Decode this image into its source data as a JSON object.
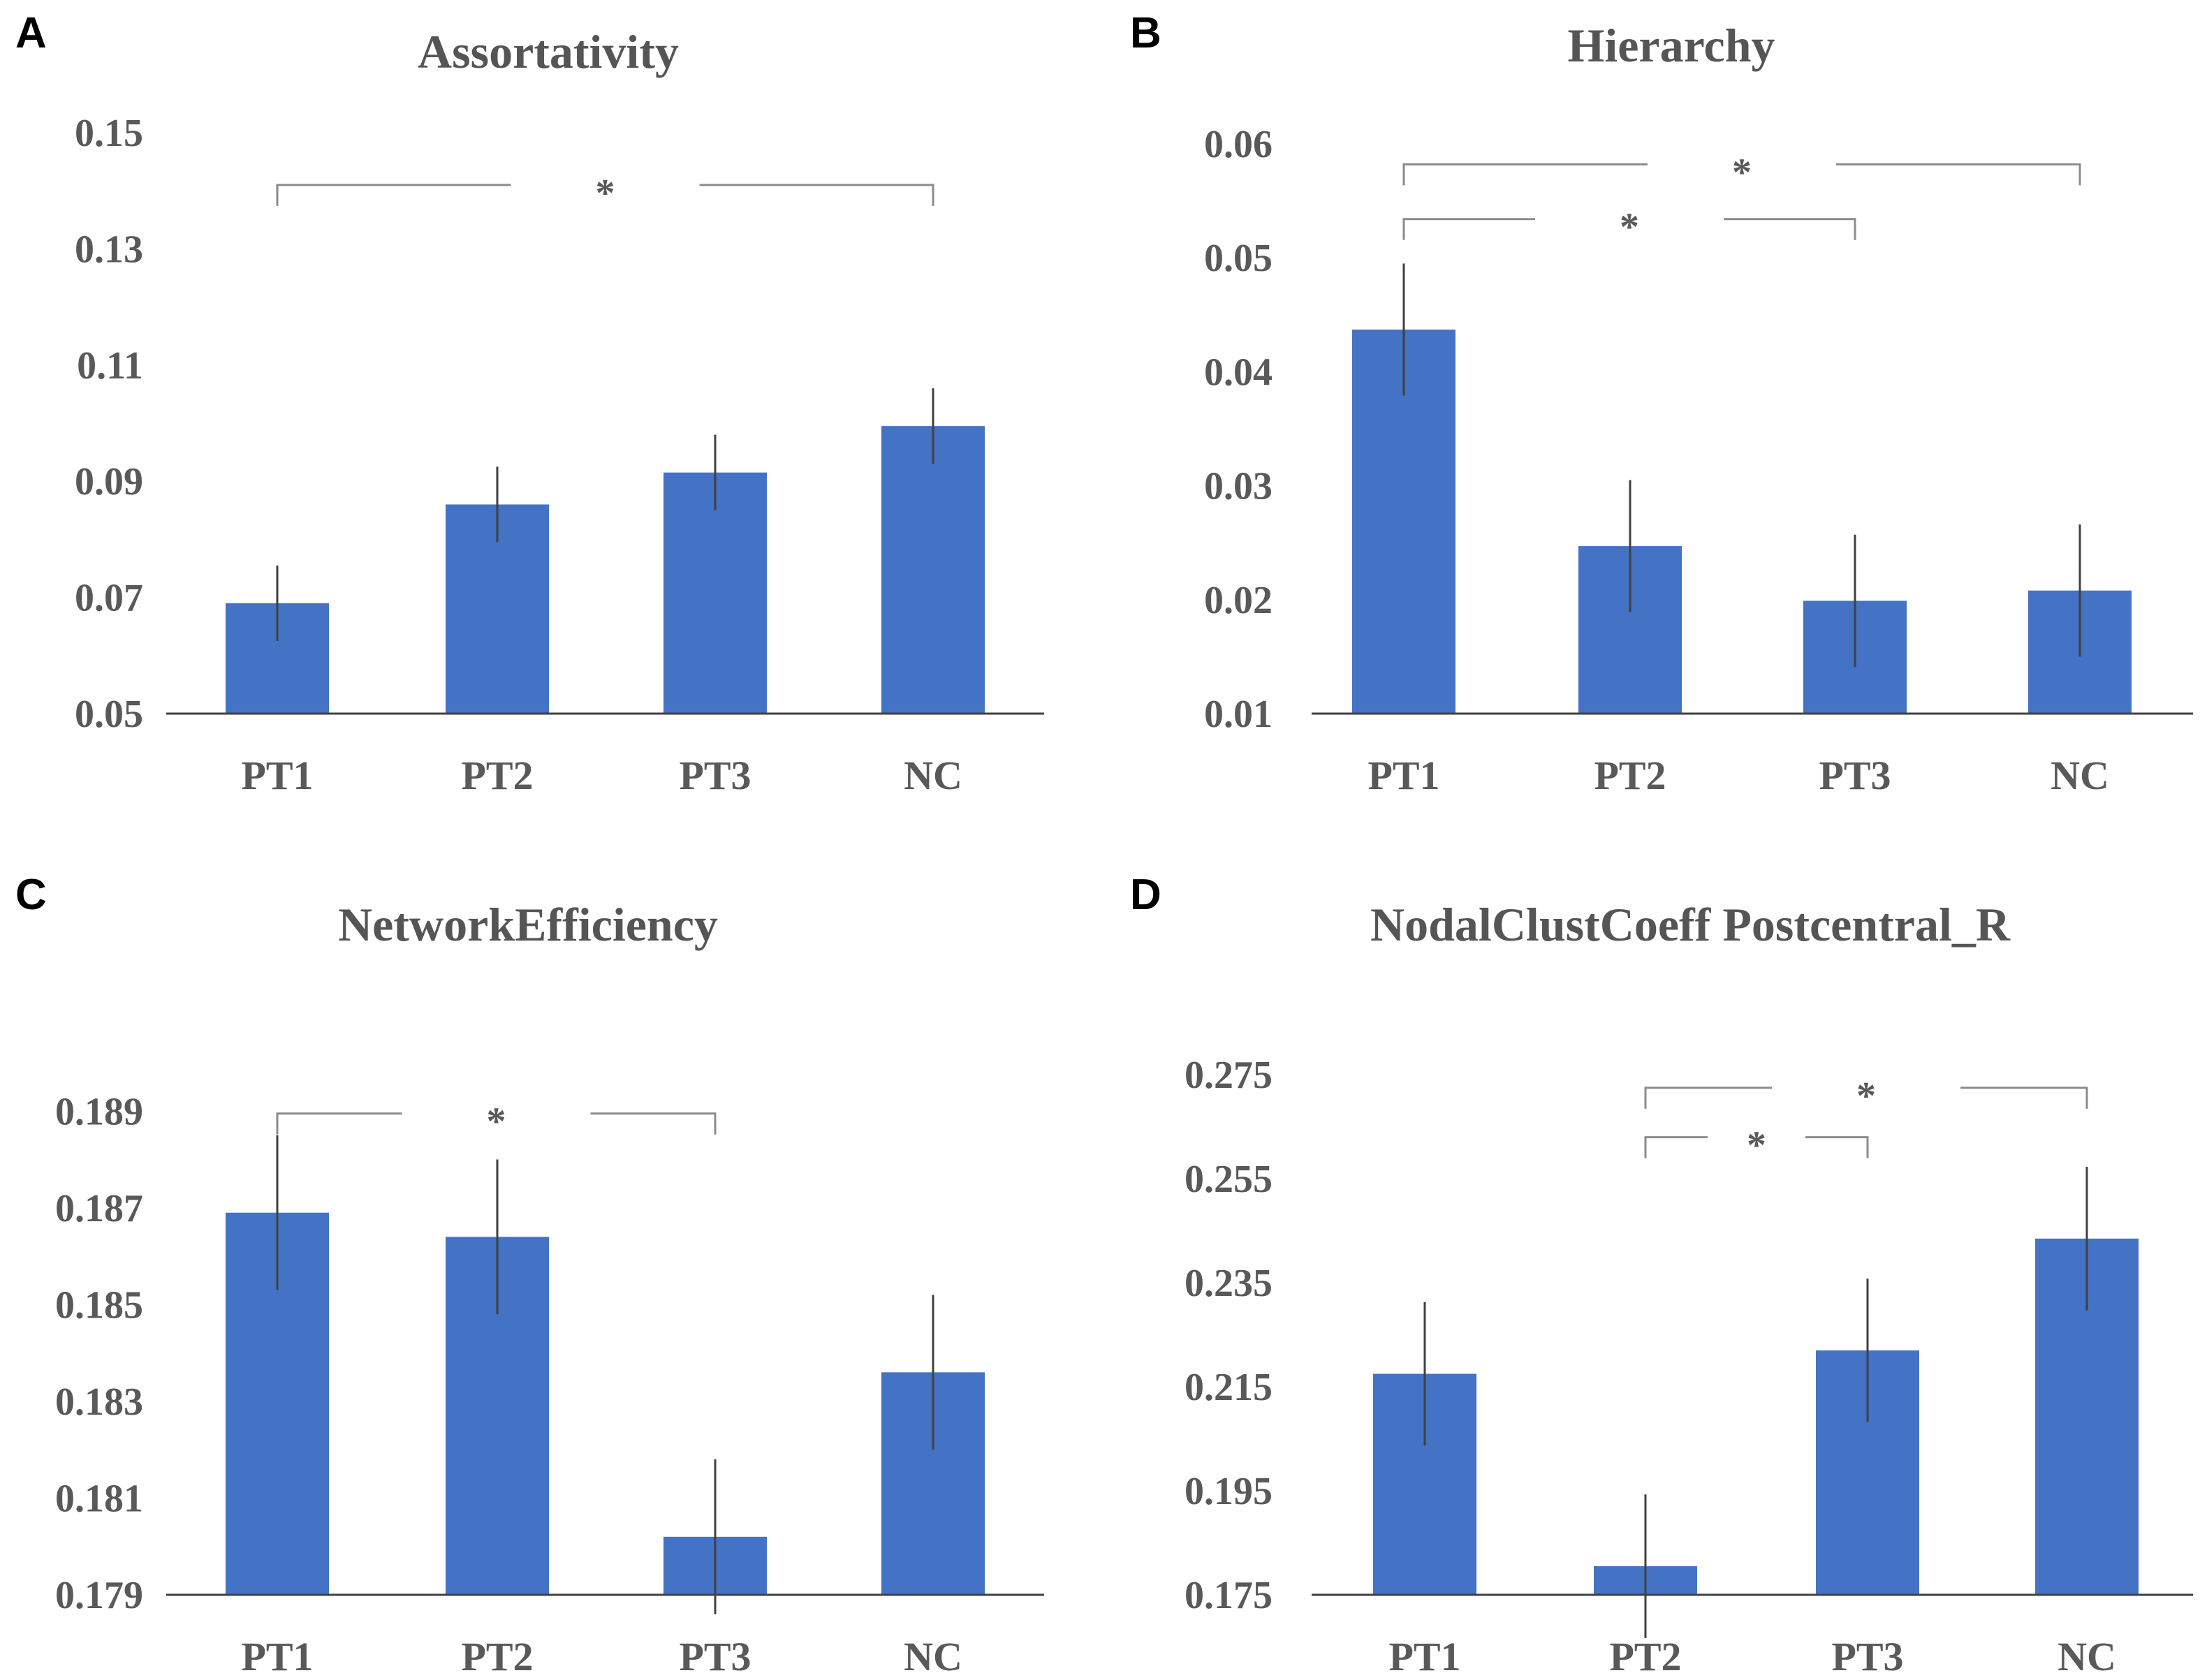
{
  "colors": {
    "bar": "#4472C4",
    "axis": "#404040",
    "bracket": "#8c8c8c",
    "error": "#404040"
  },
  "chart_data": [
    {
      "type": "bar",
      "panel": "A",
      "title": "Assortativity",
      "categories": [
        "PT1",
        "PT2",
        "PT3",
        "NC"
      ],
      "values": [
        0.069,
        0.086,
        0.0915,
        0.0995
      ],
      "errors": [
        0.0065,
        0.0065,
        0.0065,
        0.0065
      ],
      "ylim": [
        0.05,
        0.15
      ],
      "yticks": [
        "0.05",
        "0.07",
        "0.09",
        "0.11",
        "0.13",
        "0.15"
      ],
      "significance": [
        {
          "from": 0,
          "to": 3,
          "label": "*",
          "level": 0.141
        }
      ]
    },
    {
      "type": "bar",
      "panel": "B",
      "title": "Hierarchy",
      "categories": [
        "PT1",
        "PT2",
        "PT3",
        "NC"
      ],
      "values": [
        0.0437,
        0.0247,
        0.0199,
        0.0208
      ],
      "errors": [
        0.0058,
        0.0058,
        0.0058,
        0.0058
      ],
      "ylim": [
        0.01,
        0.06
      ],
      "yticks": [
        "0.01",
        "0.02",
        "0.03",
        "0.04",
        "0.05",
        "0.06"
      ],
      "significance": [
        {
          "from": 0,
          "to": 3,
          "label": "*",
          "level": 0.0582
        },
        {
          "from": 0,
          "to": 2,
          "label": "*",
          "level": 0.0534
        }
      ]
    },
    {
      "type": "bar",
      "panel": "C",
      "title": "NetworkEfficiency",
      "categories": [
        "PT1",
        "PT2",
        "PT3",
        "NC"
      ],
      "values": [
        0.1869,
        0.1864,
        0.1802,
        0.1836
      ],
      "errors": [
        0.0016,
        0.0016,
        0.0016,
        0.0016
      ],
      "ylim": [
        0.179,
        0.19
      ],
      "yticks": [
        "0.179",
        "0.181",
        "0.183",
        "0.185",
        "0.187",
        "0.189"
      ],
      "significance": [
        {
          "from": 0,
          "to": 2,
          "label": "*",
          "level": 0.18895
        }
      ]
    },
    {
      "type": "bar",
      "panel": "D",
      "title": "NodalClustCoeff   Postcentral_R",
      "categories": [
        "PT1",
        "PT2",
        "PT3",
        "NC"
      ],
      "values": [
        0.2175,
        0.1805,
        0.222,
        0.2435
      ],
      "errors": [
        0.0138,
        0.0138,
        0.0138,
        0.0138
      ],
      "ylim": [
        0.175,
        0.28
      ],
      "yticks": [
        "0.175",
        "0.195",
        "0.215",
        "0.235",
        "0.255",
        "0.275"
      ],
      "significance": [
        {
          "from": 1,
          "to": 3,
          "label": "*",
          "level": 0.2725
        },
        {
          "from": 1,
          "to": 2,
          "label": "*",
          "level": 0.263
        }
      ]
    }
  ]
}
